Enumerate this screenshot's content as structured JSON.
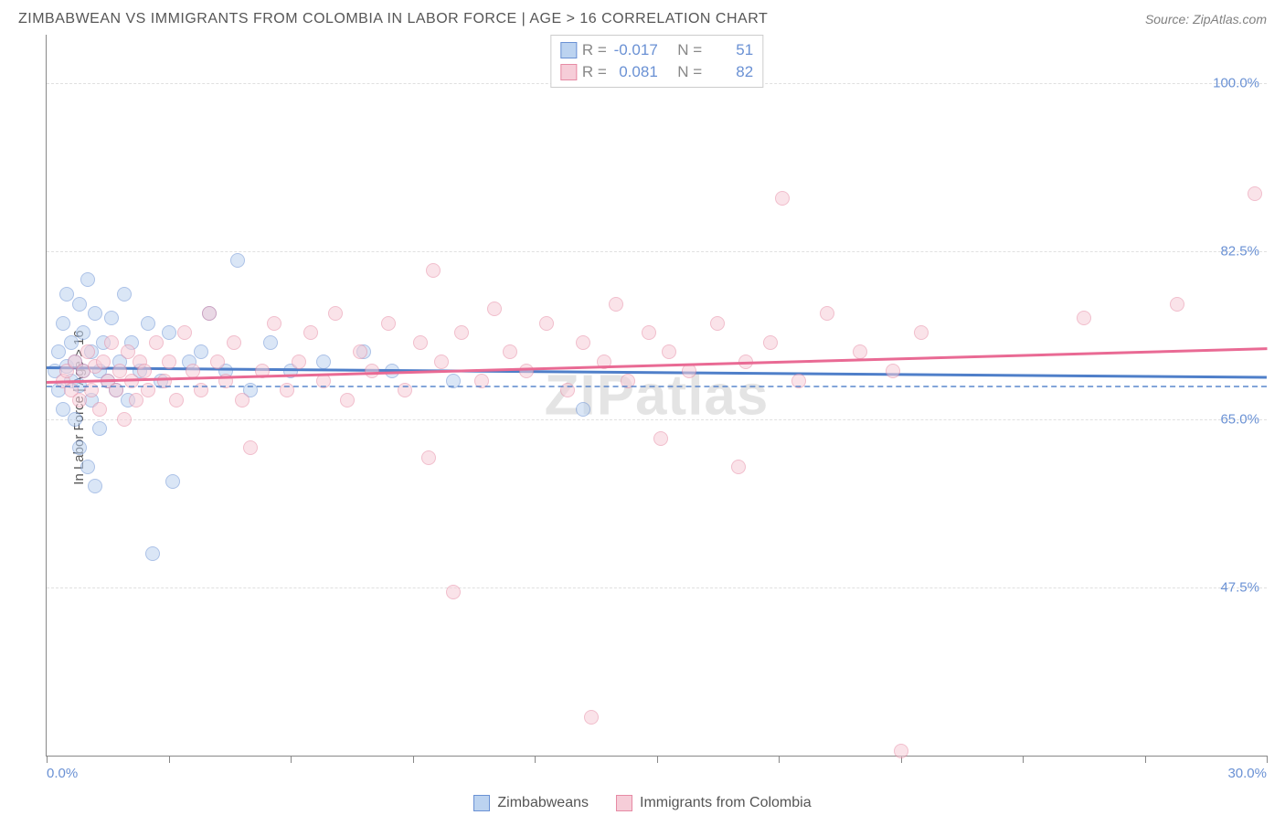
{
  "header": {
    "title": "ZIMBABWEAN VS IMMIGRANTS FROM COLOMBIA IN LABOR FORCE | AGE > 16 CORRELATION CHART",
    "source": "Source: ZipAtlas.com"
  },
  "watermark": "ZIPatlas",
  "chart": {
    "type": "scatter",
    "ylabel": "In Labor Force | Age > 16",
    "background_color": "#ffffff",
    "grid_color": "#e0e0e0",
    "axis_color": "#888888",
    "label_color": "#565656",
    "tick_label_color": "#6a91d4",
    "tick_fontsize": 15,
    "ylabel_fontsize": 15,
    "title_fontsize": 16,
    "xlim": [
      0,
      30
    ],
    "ylim": [
      30,
      105
    ],
    "point_radius": 8,
    "point_opacity": 0.55,
    "yticks": [
      {
        "value": 47.5,
        "label": "47.5%"
      },
      {
        "value": 65.0,
        "label": "65.0%"
      },
      {
        "value": 82.5,
        "label": "82.5%"
      },
      {
        "value": 100.0,
        "label": "100.0%"
      }
    ],
    "xtick_positions": [
      0,
      3,
      6,
      9,
      12,
      15,
      18,
      21,
      24,
      27,
      30
    ],
    "xtick_labels": {
      "start": "0.0%",
      "end": "30.0%"
    },
    "correlation_box": {
      "rows": [
        {
          "color_fill": "#bcd3f0",
          "color_border": "#6a91d4",
          "R_label": "R =",
          "R": "-0.017",
          "N_label": "N =",
          "N": "51"
        },
        {
          "color_fill": "#f6cdd8",
          "color_border": "#e68aa4",
          "R_label": "R =",
          "R": "0.081",
          "N_label": "N =",
          "N": "82"
        }
      ]
    },
    "legend": [
      {
        "color_fill": "#bcd3f0",
        "color_border": "#6a91d4",
        "label": "Zimbabweans"
      },
      {
        "color_fill": "#f6cdd8",
        "color_border": "#e68aa4",
        "label": "Immigrants from Colombia"
      }
    ],
    "series": [
      {
        "name": "Zimbabweans",
        "fill": "#bcd3f0",
        "border": "#6a91d4",
        "trend_color": "#4f7fc9",
        "trend_dash_color": "#4f7fc9",
        "trend": {
          "y_at_xmin": 70.5,
          "y_at_xmax": 69.5,
          "width": 2.5
        },
        "points": [
          [
            0.2,
            70
          ],
          [
            0.3,
            72
          ],
          [
            0.3,
            68
          ],
          [
            0.4,
            75
          ],
          [
            0.4,
            66
          ],
          [
            0.5,
            78
          ],
          [
            0.5,
            70.5
          ],
          [
            0.6,
            73
          ],
          [
            0.6,
            69
          ],
          [
            0.7,
            65
          ],
          [
            0.7,
            71
          ],
          [
            0.8,
            77
          ],
          [
            0.8,
            68.5
          ],
          [
            0.8,
            62
          ],
          [
            0.9,
            74
          ],
          [
            0.9,
            70
          ],
          [
            1.0,
            79.5
          ],
          [
            1.0,
            60
          ],
          [
            1.1,
            72
          ],
          [
            1.1,
            67
          ],
          [
            1.2,
            76
          ],
          [
            1.2,
            58
          ],
          [
            1.3,
            70
          ],
          [
            1.3,
            64
          ],
          [
            1.4,
            73
          ],
          [
            1.5,
            69
          ],
          [
            1.6,
            75.5
          ],
          [
            1.7,
            68
          ],
          [
            1.8,
            71
          ],
          [
            1.9,
            78
          ],
          [
            2.0,
            67
          ],
          [
            2.1,
            73
          ],
          [
            2.3,
            70
          ],
          [
            2.5,
            75
          ],
          [
            2.6,
            51
          ],
          [
            2.8,
            69
          ],
          [
            3.0,
            74
          ],
          [
            3.1,
            58.5
          ],
          [
            3.5,
            71
          ],
          [
            3.8,
            72
          ],
          [
            4.0,
            76
          ],
          [
            4.4,
            70
          ],
          [
            4.7,
            81.5
          ],
          [
            5.0,
            68
          ],
          [
            5.5,
            73
          ],
          [
            6.0,
            70
          ],
          [
            6.8,
            71
          ],
          [
            7.8,
            72
          ],
          [
            8.5,
            70
          ],
          [
            10.0,
            69
          ],
          [
            13.2,
            66
          ]
        ]
      },
      {
        "name": "Immigrants from Colombia",
        "fill": "#f6cdd8",
        "border": "#e68aa4",
        "trend_color": "#e96a94",
        "trend": {
          "y_at_xmin": 69.0,
          "y_at_xmax": 72.5,
          "width": 2.5
        },
        "points": [
          [
            0.4,
            69
          ],
          [
            0.5,
            70
          ],
          [
            0.6,
            68
          ],
          [
            0.7,
            71
          ],
          [
            0.8,
            67
          ],
          [
            0.9,
            70
          ],
          [
            1.0,
            72
          ],
          [
            1.1,
            68
          ],
          [
            1.2,
            70.5
          ],
          [
            1.3,
            66
          ],
          [
            1.4,
            71
          ],
          [
            1.5,
            69
          ],
          [
            1.6,
            73
          ],
          [
            1.7,
            68
          ],
          [
            1.8,
            70
          ],
          [
            1.9,
            65
          ],
          [
            2.0,
            72
          ],
          [
            2.1,
            69
          ],
          [
            2.2,
            67
          ],
          [
            2.3,
            71
          ],
          [
            2.4,
            70
          ],
          [
            2.5,
            68
          ],
          [
            2.7,
            73
          ],
          [
            2.9,
            69
          ],
          [
            3.0,
            71
          ],
          [
            3.2,
            67
          ],
          [
            3.4,
            74
          ],
          [
            3.6,
            70
          ],
          [
            3.8,
            68
          ],
          [
            4.0,
            76
          ],
          [
            4.2,
            71
          ],
          [
            4.4,
            69
          ],
          [
            4.6,
            73
          ],
          [
            4.8,
            67
          ],
          [
            5.0,
            62
          ],
          [
            5.3,
            70
          ],
          [
            5.6,
            75
          ],
          [
            5.9,
            68
          ],
          [
            6.2,
            71
          ],
          [
            6.5,
            74
          ],
          [
            6.8,
            69
          ],
          [
            7.1,
            76
          ],
          [
            7.4,
            67
          ],
          [
            7.7,
            72
          ],
          [
            8.0,
            70
          ],
          [
            8.4,
            75
          ],
          [
            8.8,
            68
          ],
          [
            9.2,
            73
          ],
          [
            9.4,
            61
          ],
          [
            9.5,
            80.5
          ],
          [
            9.7,
            71
          ],
          [
            10.0,
            47
          ],
          [
            10.2,
            74
          ],
          [
            10.7,
            69
          ],
          [
            11.0,
            76.5
          ],
          [
            11.4,
            72
          ],
          [
            11.8,
            70
          ],
          [
            12.3,
            75
          ],
          [
            12.8,
            68
          ],
          [
            13.2,
            73
          ],
          [
            13.4,
            34
          ],
          [
            13.7,
            71
          ],
          [
            14.0,
            77
          ],
          [
            14.3,
            69
          ],
          [
            14.8,
            74
          ],
          [
            15.1,
            63
          ],
          [
            15.3,
            72
          ],
          [
            15.8,
            70
          ],
          [
            16.5,
            75
          ],
          [
            17.0,
            60
          ],
          [
            17.2,
            71
          ],
          [
            17.8,
            73
          ],
          [
            18.1,
            88
          ],
          [
            18.5,
            69
          ],
          [
            19.2,
            76
          ],
          [
            20.0,
            72
          ],
          [
            20.8,
            70
          ],
          [
            21.0,
            30.5
          ],
          [
            21.5,
            74
          ],
          [
            25.5,
            75.5
          ],
          [
            27.8,
            77
          ],
          [
            29.7,
            88.5
          ]
        ]
      }
    ]
  }
}
